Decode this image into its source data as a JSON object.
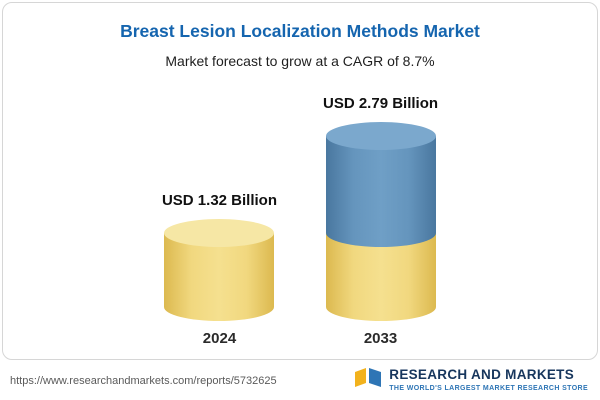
{
  "header": {
    "title": "Breast Lesion Localization Methods Market",
    "subtitle": "Market forecast to grow at a CAGR of 8.7%"
  },
  "chart_data": {
    "type": "bar",
    "bar_style": "3d-cylinder",
    "title": "Breast Lesion Localization Methods Market",
    "subtitle": "Market forecast to grow at a CAGR of 8.7%",
    "cagr": "8.7%",
    "categories": [
      "2024",
      "2033"
    ],
    "values": [
      1.32,
      2.79
    ],
    "value_labels": [
      "USD 1.32 Billion",
      "USD 2.79 Billion"
    ],
    "unit": "USD Billion",
    "ylim": [
      0,
      3
    ],
    "grid": false,
    "legend": "none",
    "colors": {
      "bar_2024": "#efd077",
      "bar_2033_base": "#efd077",
      "bar_2033_growth": "#5d8fba",
      "title_accent": "#1565af"
    }
  },
  "footer": {
    "url": "https://www.researchandmarkets.com/reports/5732625",
    "brand_name": "RESEARCH AND MARKETS",
    "brand_tagline": "THE WORLD'S LARGEST MARKET RESEARCH STORE"
  }
}
